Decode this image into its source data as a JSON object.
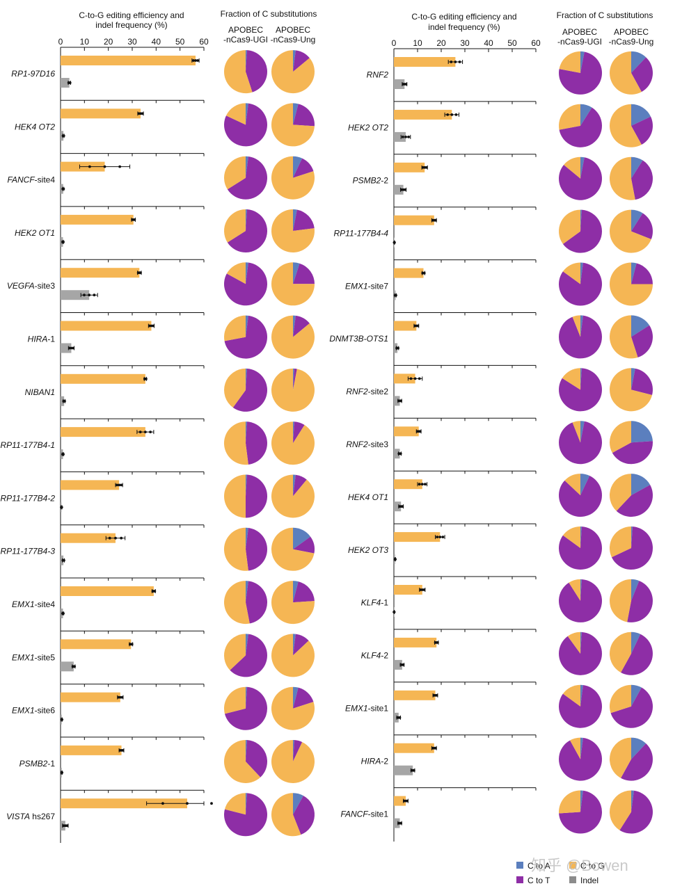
{
  "headers": {
    "bar_title_line1": "C-to-G editing efficiency and",
    "bar_title_line2": "indel frequency (%)",
    "pie_title": "Fraction of C substitutions",
    "pie_col1_line1": "APOBEC",
    "pie_col1_line2": "-nCas9-UGI",
    "pie_col2_line1": "APOBEC",
    "pie_col2_line2": "-nCas9-Ung"
  },
  "legend": {
    "items": [
      {
        "label": "C to A",
        "color": "#5b7fbe"
      },
      {
        "label": "C to G",
        "color": "#f5b654"
      },
      {
        "label": "C to T",
        "color": "#8e2ea6"
      },
      {
        "label": "Indel",
        "color": "#8c8c8c"
      }
    ]
  },
  "watermark": "知乎 @Bowen",
  "colors": {
    "c_to_g": "#f5b654",
    "indel": "#a6a6a6",
    "c_to_a": "#5b7fbe",
    "c_to_t": "#8e2ea6",
    "axis": "#111111"
  },
  "chart_data": [
    {
      "type": "bar",
      "title": "C-to-G editing efficiency and indel frequency (%)",
      "xlim": [
        0,
        60
      ],
      "xticks": [
        "0",
        "10",
        "20",
        "30",
        "40",
        "50",
        "60"
      ],
      "series_names": [
        "C-to-G editing efficiency",
        "Indel frequency"
      ],
      "sites": [
        {
          "prefix": "RP1-97D16",
          "suffix": "",
          "cg": 56.5,
          "cg_err": 1.5,
          "indel": 3.7,
          "indel_err": 0.5
        },
        {
          "prefix": "HEK4 OT2",
          "suffix": "",
          "cg": 33.5,
          "cg_err": 1.2,
          "indel": 1.2,
          "indel_err": 0.3
        },
        {
          "prefix": "FANCF",
          "suffix": "-site4",
          "cg": 18.5,
          "cg_err": 10.5,
          "indel": 1.1,
          "indel_err": 0.3
        },
        {
          "prefix": "HEK2 OT1",
          "suffix": "",
          "cg": 30.5,
          "cg_err": 0.8,
          "indel": 1.0,
          "indel_err": 0.3
        },
        {
          "prefix": "VEGFA",
          "suffix": "-site3",
          "cg": 33.0,
          "cg_err": 0.8,
          "indel": 12.0,
          "indel_err": 3.5
        },
        {
          "prefix": "HIRA",
          "suffix": "-1",
          "cg": 38.0,
          "cg_err": 1.2,
          "indel": 4.5,
          "indel_err": 1.2
        },
        {
          "prefix": "NIBAN1",
          "suffix": "",
          "cg": 35.5,
          "cg_err": 0.5,
          "indel": 1.5,
          "indel_err": 0.4
        },
        {
          "prefix": "RP11-177B4-1",
          "suffix": "",
          "cg": 35.5,
          "cg_err": 3.5,
          "indel": 1.0,
          "indel_err": 0.3
        },
        {
          "prefix": "RP11-177B4-2",
          "suffix": "",
          "cg": 24.5,
          "cg_err": 1.5,
          "indel": 0.4,
          "indel_err": 0.2
        },
        {
          "prefix": "RP11-177B4-3",
          "suffix": "",
          "cg": 23.0,
          "cg_err": 4.0,
          "indel": 1.2,
          "indel_err": 0.4
        },
        {
          "prefix": "EMX1",
          "suffix": "-site4",
          "cg": 39.0,
          "cg_err": 0.7,
          "indel": 1.0,
          "indel_err": 0.3
        },
        {
          "prefix": "EMX1",
          "suffix": "-site5",
          "cg": 29.5,
          "cg_err": 0.7,
          "indel": 5.5,
          "indel_err": 0.6
        },
        {
          "prefix": "EMX1",
          "suffix": "-site6",
          "cg": 25.0,
          "cg_err": 1.2,
          "indel": 0.5,
          "indel_err": 0.2
        },
        {
          "prefix": "PSMB2",
          "suffix": "-1",
          "cg": 25.5,
          "cg_err": 1.0,
          "indel": 0.5,
          "indel_err": 0.2
        },
        {
          "prefix": "VISTA",
          "suffix": " hs267",
          "cg": 53.0,
          "cg_err": 17.0,
          "indel": 2.0,
          "indel_err": 1.2
        }
      ],
      "pies": [
        {
          "ugi": {
            "c_to_a": 1,
            "c_to_g": 55,
            "c_to_t": 44
          },
          "ung": {
            "c_to_a": 2,
            "c_to_g": 86,
            "c_to_t": 12
          }
        },
        {
          "ugi": {
            "c_to_a": 2,
            "c_to_g": 18,
            "c_to_t": 80
          },
          "ung": {
            "c_to_a": 4,
            "c_to_g": 74,
            "c_to_t": 22
          }
        },
        {
          "ugi": {
            "c_to_a": 2,
            "c_to_g": 34,
            "c_to_t": 64
          },
          "ung": {
            "c_to_a": 7,
            "c_to_g": 80,
            "c_to_t": 13
          }
        },
        {
          "ugi": {
            "c_to_a": 1,
            "c_to_g": 34,
            "c_to_t": 65
          },
          "ung": {
            "c_to_a": 3,
            "c_to_g": 77,
            "c_to_t": 20
          }
        },
        {
          "ugi": {
            "c_to_a": 2,
            "c_to_g": 17,
            "c_to_t": 81
          },
          "ung": {
            "c_to_a": 5,
            "c_to_g": 75,
            "c_to_t": 20
          }
        },
        {
          "ugi": {
            "c_to_a": 2,
            "c_to_g": 28,
            "c_to_t": 70
          },
          "ung": {
            "c_to_a": 2,
            "c_to_g": 86,
            "c_to_t": 12
          }
        },
        {
          "ugi": {
            "c_to_a": 1,
            "c_to_g": 40,
            "c_to_t": 59
          },
          "ung": {
            "c_to_a": 1,
            "c_to_g": 97,
            "c_to_t": 2
          }
        },
        {
          "ugi": {
            "c_to_a": 1,
            "c_to_g": 52,
            "c_to_t": 47
          },
          "ung": {
            "c_to_a": 1,
            "c_to_g": 91,
            "c_to_t": 8
          }
        },
        {
          "ugi": {
            "c_to_a": 1,
            "c_to_g": 50,
            "c_to_t": 49
          },
          "ung": {
            "c_to_a": 2,
            "c_to_g": 89,
            "c_to_t": 9
          }
        },
        {
          "ugi": {
            "c_to_a": 2,
            "c_to_g": 52,
            "c_to_t": 46
          },
          "ung": {
            "c_to_a": 15,
            "c_to_g": 72,
            "c_to_t": 13
          }
        },
        {
          "ugi": {
            "c_to_a": 2,
            "c_to_g": 53,
            "c_to_t": 45
          },
          "ung": {
            "c_to_a": 4,
            "c_to_g": 76,
            "c_to_t": 20
          }
        },
        {
          "ugi": {
            "c_to_a": 2,
            "c_to_g": 37,
            "c_to_t": 61
          },
          "ung": {
            "c_to_a": 2,
            "c_to_g": 87,
            "c_to_t": 11
          }
        },
        {
          "ugi": {
            "c_to_a": 1,
            "c_to_g": 29,
            "c_to_t": 70
          },
          "ung": {
            "c_to_a": 4,
            "c_to_g": 80,
            "c_to_t": 16
          }
        },
        {
          "ugi": {
            "c_to_a": 1,
            "c_to_g": 62,
            "c_to_t": 37
          },
          "ung": {
            "c_to_a": 1,
            "c_to_g": 93,
            "c_to_t": 6
          }
        },
        {
          "ugi": {
            "c_to_a": 1,
            "c_to_g": 21,
            "c_to_t": 78
          },
          "ung": {
            "c_to_a": 8,
            "c_to_g": 56,
            "c_to_t": 36
          }
        }
      ]
    },
    {
      "type": "bar",
      "title": "C-to-G editing efficiency and indel frequency (%)",
      "xlim": [
        0,
        60
      ],
      "xticks": [
        "0",
        "10",
        "20",
        "30",
        "40",
        "50",
        "60"
      ],
      "series_names": [
        "C-to-G editing efficiency",
        "Indel frequency"
      ],
      "sites": [
        {
          "prefix": "RNF2",
          "suffix": "",
          "cg": 26.0,
          "cg_err": 3.0,
          "indel": 4.5,
          "indel_err": 1.0
        },
        {
          "prefix": "HEK2 OT2",
          "suffix": "",
          "cg": 24.5,
          "cg_err": 3.0,
          "indel": 5.0,
          "indel_err": 2.0
        },
        {
          "prefix": "PSMB2",
          "suffix": "-2",
          "cg": 13.0,
          "cg_err": 1.2,
          "indel": 4.0,
          "indel_err": 1.2
        },
        {
          "prefix": "RP11-177B4-4",
          "suffix": "",
          "cg": 17.0,
          "cg_err": 1.0,
          "indel": 0.2,
          "indel_err": 0.1
        },
        {
          "prefix": "EMX1",
          "suffix": "-site7",
          "cg": 12.5,
          "cg_err": 0.6,
          "indel": 0.7,
          "indel_err": 0.3
        },
        {
          "prefix": "DNMT3B-OTS1",
          "suffix": "",
          "cg": 9.5,
          "cg_err": 1.0,
          "indel": 1.5,
          "indel_err": 0.5
        },
        {
          "prefix": "RNF2",
          "suffix": "-site2",
          "cg": 9.0,
          "cg_err": 3.0,
          "indel": 2.5,
          "indel_err": 0.8
        },
        {
          "prefix": "RNF2",
          "suffix": "-site3",
          "cg": 10.5,
          "cg_err": 1.0,
          "indel": 2.5,
          "indel_err": 0.6
        },
        {
          "prefix": "HEK4 OT1",
          "suffix": "",
          "cg": 12.0,
          "cg_err": 2.0,
          "indel": 3.0,
          "indel_err": 1.0
        },
        {
          "prefix": "HEK2 OT3",
          "suffix": "",
          "cg": 19.5,
          "cg_err": 2.0,
          "indel": 0.5,
          "indel_err": 0.2
        },
        {
          "prefix": "KLF4",
          "suffix": "-1",
          "cg": 12.0,
          "cg_err": 1.2,
          "indel": 0.1,
          "indel_err": 0.1
        },
        {
          "prefix": "KLF4",
          "suffix": "-2",
          "cg": 18.0,
          "cg_err": 0.8,
          "indel": 3.5,
          "indel_err": 0.8
        },
        {
          "prefix": "EMX1",
          "suffix": "-site1",
          "cg": 17.5,
          "cg_err": 1.0,
          "indel": 2.0,
          "indel_err": 0.8
        },
        {
          "prefix": "HIRA",
          "suffix": "-2",
          "cg": 17.0,
          "cg_err": 1.0,
          "indel": 8.0,
          "indel_err": 0.8
        },
        {
          "prefix": "FANCF",
          "suffix": "-site1",
          "cg": 5.0,
          "cg_err": 1.0,
          "indel": 2.5,
          "indel_err": 0.8
        }
      ],
      "pies": [
        {
          "ugi": {
            "c_to_a": 3,
            "c_to_g": 22,
            "c_to_t": 75
          },
          "ung": {
            "c_to_a": 12,
            "c_to_g": 58,
            "c_to_t": 30
          }
        },
        {
          "ugi": {
            "c_to_a": 9,
            "c_to_g": 28,
            "c_to_t": 63
          },
          "ung": {
            "c_to_a": 18,
            "c_to_g": 58,
            "c_to_t": 24
          }
        },
        {
          "ugi": {
            "c_to_a": 3,
            "c_to_g": 14,
            "c_to_t": 83
          },
          "ung": {
            "c_to_a": 9,
            "c_to_g": 53,
            "c_to_t": 38
          }
        },
        {
          "ugi": {
            "c_to_a": 1,
            "c_to_g": 35,
            "c_to_t": 64
          },
          "ung": {
            "c_to_a": 9,
            "c_to_g": 69,
            "c_to_t": 22
          }
        },
        {
          "ugi": {
            "c_to_a": 2,
            "c_to_g": 15,
            "c_to_t": 83
          },
          "ung": {
            "c_to_a": 4,
            "c_to_g": 75,
            "c_to_t": 21
          }
        },
        {
          "ugi": {
            "c_to_a": 2,
            "c_to_g": 6,
            "c_to_t": 92
          },
          "ung": {
            "c_to_a": 16,
            "c_to_g": 55,
            "c_to_t": 29
          }
        },
        {
          "ugi": {
            "c_to_a": 1,
            "c_to_g": 16,
            "c_to_t": 83
          },
          "ung": {
            "c_to_a": 3,
            "c_to_g": 71,
            "c_to_t": 26
          }
        },
        {
          "ugi": {
            "c_to_a": 3,
            "c_to_g": 6,
            "c_to_t": 91
          },
          "ung": {
            "c_to_a": 24,
            "c_to_g": 33,
            "c_to_t": 43
          }
        },
        {
          "ugi": {
            "c_to_a": 7,
            "c_to_g": 13,
            "c_to_t": 80
          },
          "ung": {
            "c_to_a": 17,
            "c_to_g": 38,
            "c_to_t": 45
          }
        },
        {
          "ugi": {
            "c_to_a": 1,
            "c_to_g": 15,
            "c_to_t": 84
          },
          "ung": {
            "c_to_a": 1,
            "c_to_g": 32,
            "c_to_t": 67
          }
        },
        {
          "ugi": {
            "c_to_a": 1,
            "c_to_g": 9,
            "c_to_t": 90
          },
          "ung": {
            "c_to_a": 6,
            "c_to_g": 47,
            "c_to_t": 47
          }
        },
        {
          "ugi": {
            "c_to_a": 1,
            "c_to_g": 10,
            "c_to_t": 89
          },
          "ung": {
            "c_to_a": 7,
            "c_to_g": 42,
            "c_to_t": 51
          }
        },
        {
          "ugi": {
            "c_to_a": 2,
            "c_to_g": 15,
            "c_to_t": 83
          },
          "ung": {
            "c_to_a": 8,
            "c_to_g": 30,
            "c_to_t": 62
          }
        },
        {
          "ugi": {
            "c_to_a": 2,
            "c_to_g": 8,
            "c_to_t": 90
          },
          "ung": {
            "c_to_a": 12,
            "c_to_g": 42,
            "c_to_t": 46
          }
        },
        {
          "ugi": {
            "c_to_a": 2,
            "c_to_g": 26,
            "c_to_t": 72
          },
          "ung": {
            "c_to_a": 2,
            "c_to_g": 41,
            "c_to_t": 57
          }
        }
      ]
    }
  ]
}
